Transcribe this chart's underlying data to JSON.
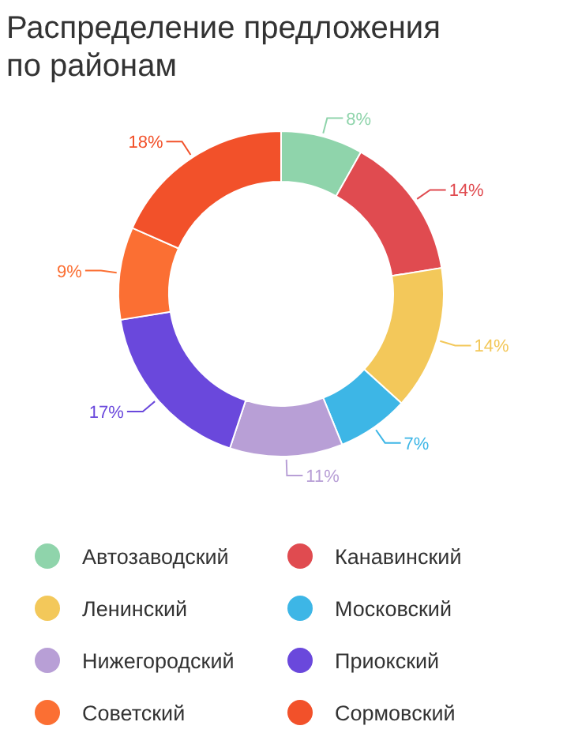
{
  "chart_data": {
    "type": "donut",
    "title": "Распределение предложения по районам",
    "categories": [
      "Автозаводский",
      "Канавинский",
      "Ленинский",
      "Московский",
      "Нижегородский",
      "Приокский",
      "Советский",
      "Сормовский"
    ],
    "values": [
      8,
      14,
      14,
      7,
      11,
      17,
      9,
      18
    ],
    "colors": [
      "#8fd4ab",
      "#e04b50",
      "#f3c85a",
      "#3db6e6",
      "#b89fd6",
      "#6a48dc",
      "#fb6f33",
      "#f2512a"
    ],
    "value_labels": [
      "8%",
      "14%",
      "14%",
      "7%",
      "11%",
      "17%",
      "9%",
      "18%"
    ],
    "legend": "bottom"
  }
}
